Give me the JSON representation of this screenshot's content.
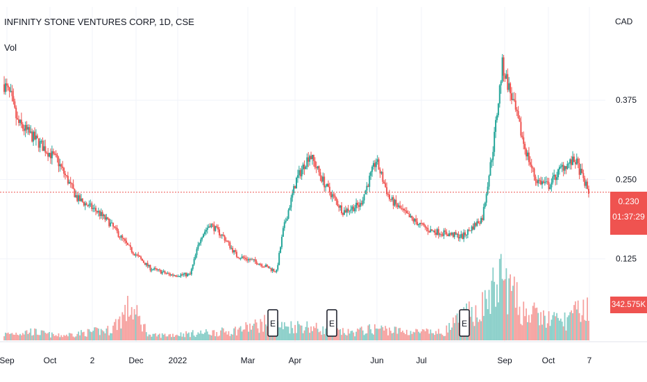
{
  "header": {
    "title": "INFINITY STONE VENTURES CORP, 1D, CSE",
    "volume_label": "Vol",
    "currency": "CAD"
  },
  "price_tag": {
    "price": "0.230",
    "countdown": "01:37:29"
  },
  "volume_tag": {
    "value": "342.575K"
  },
  "colors": {
    "up": "#26a69a",
    "down": "#ef5350",
    "grid": "#f0f3fa",
    "axis_text": "#131722"
  },
  "chart_data": {
    "type": "candlestick",
    "title": "INFINITY STONE VENTURES CORP, 1D, CSE",
    "interval": "1D",
    "exchange": "CSE",
    "currency": "CAD",
    "last_price": 0.23,
    "last_volume": "342.575K",
    "ylim": [
      0.035,
      0.5
    ],
    "y_ticks": [
      0.125,
      0.25,
      0.375
    ],
    "y_tick_labels": [
      "0.125",
      "0.250",
      "0.375"
    ],
    "x_tick_labels": [
      "Sep",
      "Oct",
      "2",
      "Dec",
      "2022",
      "Mar",
      "Apr",
      "Jun",
      "Jul",
      "Sep",
      "Oct",
      "7"
    ],
    "earnings_markers": [
      "E",
      "E",
      "E"
    ],
    "grid": true,
    "series": [
      {
        "name": "Price",
        "type": "line",
        "note": "approximate close levels across the window, read from gridlines",
        "points": [
          [
            0,
            0.4
          ],
          [
            5,
            0.38
          ],
          [
            10,
            0.34
          ],
          [
            20,
            0.32
          ],
          [
            30,
            0.3
          ],
          [
            40,
            0.28
          ],
          [
            55,
            0.22
          ],
          [
            70,
            0.2
          ],
          [
            80,
            0.18
          ],
          [
            95,
            0.14
          ],
          [
            110,
            0.11
          ],
          [
            125,
            0.1
          ],
          [
            140,
            0.1
          ],
          [
            148,
            0.16
          ],
          [
            155,
            0.18
          ],
          [
            165,
            0.16
          ],
          [
            175,
            0.13
          ],
          [
            190,
            0.12
          ],
          [
            205,
            0.105
          ],
          [
            210,
            0.17
          ],
          [
            220,
            0.25
          ],
          [
            230,
            0.29
          ],
          [
            242,
            0.24
          ],
          [
            255,
            0.2
          ],
          [
            268,
            0.21
          ],
          [
            280,
            0.28
          ],
          [
            290,
            0.22
          ],
          [
            305,
            0.19
          ],
          [
            320,
            0.17
          ],
          [
            345,
            0.16
          ],
          [
            360,
            0.19
          ],
          [
            368,
            0.3
          ],
          [
            375,
            0.43
          ],
          [
            382,
            0.38
          ],
          [
            392,
            0.3
          ],
          [
            400,
            0.25
          ],
          [
            410,
            0.24
          ],
          [
            420,
            0.27
          ],
          [
            430,
            0.28
          ],
          [
            440,
            0.23
          ]
        ]
      },
      {
        "name": "Volume",
        "type": "bar",
        "note": "relative volume scale, 0-100",
        "points": [
          [
            0,
            8
          ],
          [
            20,
            12
          ],
          [
            40,
            6
          ],
          [
            60,
            10
          ],
          [
            80,
            14
          ],
          [
            95,
            45
          ],
          [
            110,
            6
          ],
          [
            130,
            8
          ],
          [
            150,
            10
          ],
          [
            170,
            12
          ],
          [
            190,
            20
          ],
          [
            200,
            25
          ],
          [
            210,
            18
          ],
          [
            225,
            20
          ],
          [
            240,
            14
          ],
          [
            260,
            10
          ],
          [
            280,
            16
          ],
          [
            300,
            12
          ],
          [
            330,
            10
          ],
          [
            345,
            30
          ],
          [
            360,
            45
          ],
          [
            375,
            85
          ],
          [
            390,
            40
          ],
          [
            405,
            30
          ],
          [
            420,
            25
          ],
          [
            430,
            35
          ],
          [
            440,
            48
          ]
        ]
      }
    ]
  }
}
